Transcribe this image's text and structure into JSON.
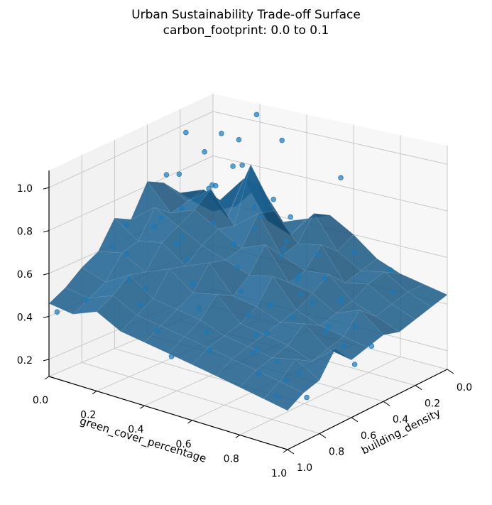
{
  "figure": {
    "title_line1": "Urban Sustainability Trade-off Surface",
    "title_line2": "carbon_footprint: 0.0 to 0.1"
  },
  "colors": {
    "surface": "#1f77b4",
    "surface_edge": "#16405f",
    "scatter": "#1f77b4",
    "pane_left": "#f2f2f2",
    "pane_right": "#f7f7f7",
    "pane_floor": "#f4f4f4",
    "grid": "#c8c8c8",
    "axis": "#000000"
  },
  "chart_data": {
    "type": "surface+scatter (3d)",
    "title": "Urban Sustainability Trade-off Surface\ncarbon_footprint: 0.0 to 0.1",
    "xlabel": "green_cover_percentage",
    "ylabel": "building_density",
    "zlabel": "",
    "xlim": [
      0.0,
      1.0
    ],
    "ylim": [
      0.0,
      1.0
    ],
    "zlim": [
      0.12,
      1.08
    ],
    "x_ticks": [
      "0.0",
      "0.2",
      "0.4",
      "0.6",
      "0.8",
      "1.0"
    ],
    "y_ticks": [
      "0.0",
      "0.2",
      "0.4",
      "0.6",
      "0.8",
      "1.0"
    ],
    "z_ticks": [
      "0.2",
      "0.4",
      "0.6",
      "0.8",
      "1.0"
    ],
    "grid": true,
    "surface_grid": {
      "x": [
        0.0,
        0.1,
        0.2,
        0.3,
        0.4,
        0.5,
        0.6,
        0.7,
        0.8,
        0.9,
        1.0
      ],
      "y": [
        0.0,
        0.1,
        0.2,
        0.3,
        0.4,
        0.5,
        0.6,
        0.7,
        0.8,
        0.9,
        1.0
      ],
      "z": [
        [
          0.55,
          0.6,
          0.72,
          0.58,
          0.62,
          0.66,
          0.6,
          0.52,
          0.48,
          0.46,
          0.44
        ],
        [
          0.62,
          0.66,
          0.78,
          0.62,
          0.58,
          0.7,
          0.56,
          0.5,
          0.52,
          0.46,
          0.42
        ],
        [
          0.7,
          0.74,
          0.64,
          0.9,
          0.72,
          0.6,
          0.62,
          0.48,
          0.5,
          0.44,
          0.4
        ],
        [
          0.78,
          0.72,
          0.8,
          0.66,
          0.74,
          0.58,
          0.54,
          0.55,
          0.46,
          0.42,
          0.38
        ],
        [
          0.82,
          0.7,
          0.74,
          0.68,
          0.62,
          0.66,
          0.52,
          0.5,
          0.44,
          0.48,
          0.4
        ],
        [
          0.68,
          0.76,
          0.7,
          0.64,
          0.6,
          0.56,
          0.58,
          0.46,
          0.42,
          0.4,
          0.38
        ],
        [
          0.72,
          0.64,
          0.66,
          0.58,
          0.62,
          0.5,
          0.48,
          0.44,
          0.46,
          0.38,
          0.36
        ],
        [
          0.6,
          0.62,
          0.56,
          0.6,
          0.52,
          0.54,
          0.44,
          0.42,
          0.4,
          0.36,
          0.44
        ],
        [
          0.56,
          0.52,
          0.58,
          0.5,
          0.48,
          0.46,
          0.42,
          0.4,
          0.38,
          0.4,
          0.34
        ],
        [
          0.5,
          0.48,
          0.52,
          0.46,
          0.44,
          0.42,
          0.4,
          0.38,
          0.36,
          0.34,
          0.32
        ],
        [
          0.46,
          0.44,
          0.48,
          0.42,
          0.4,
          0.38,
          0.36,
          0.34,
          0.32,
          0.3,
          0.28
        ]
      ]
    },
    "scatter_points": [
      [
        0.05,
        0.02,
        0.92
      ],
      [
        0.12,
        0.05,
        0.8
      ],
      [
        0.02,
        0.08,
        0.85
      ],
      [
        0.18,
        0.1,
        0.95
      ],
      [
        0.08,
        0.14,
        0.72
      ],
      [
        0.25,
        0.18,
        0.88
      ],
      [
        0.3,
        0.06,
        0.7
      ],
      [
        0.15,
        0.22,
        0.78
      ],
      [
        0.4,
        0.1,
        0.66
      ],
      [
        0.22,
        0.3,
        0.82
      ],
      [
        0.35,
        0.25,
        0.74
      ],
      [
        0.1,
        0.35,
        0.86
      ],
      [
        0.45,
        0.2,
        0.6
      ],
      [
        0.28,
        0.4,
        0.7
      ],
      [
        0.5,
        0.3,
        0.58
      ],
      [
        0.18,
        0.45,
        0.76
      ],
      [
        0.55,
        0.15,
        0.55
      ],
      [
        0.38,
        0.42,
        0.64
      ],
      [
        0.6,
        0.35,
        0.52
      ],
      [
        0.25,
        0.55,
        0.68
      ],
      [
        0.65,
        0.25,
        0.5
      ],
      [
        0.45,
        0.5,
        0.58
      ],
      [
        0.7,
        0.4,
        0.46
      ],
      [
        0.32,
        0.62,
        0.62
      ],
      [
        0.75,
        0.3,
        0.44
      ],
      [
        0.52,
        0.58,
        0.52
      ],
      [
        0.8,
        0.45,
        0.4
      ],
      [
        0.4,
        0.7,
        0.56
      ],
      [
        0.85,
        0.35,
        0.38
      ],
      [
        0.6,
        0.65,
        0.46
      ],
      [
        0.9,
        0.5,
        0.36
      ],
      [
        0.48,
        0.78,
        0.5
      ],
      [
        0.95,
        0.4,
        0.34
      ],
      [
        0.68,
        0.72,
        0.42
      ],
      [
        0.98,
        0.55,
        0.32
      ],
      [
        0.56,
        0.85,
        0.44
      ],
      [
        0.72,
        0.8,
        0.38
      ],
      [
        0.62,
        0.92,
        0.4
      ],
      [
        0.8,
        0.88,
        0.34
      ],
      [
        0.88,
        0.75,
        0.32
      ],
      [
        0.92,
        0.95,
        0.3
      ],
      [
        0.98,
        0.85,
        0.28
      ],
      [
        0.02,
        0.98,
        0.42
      ],
      [
        0.1,
        0.92,
        0.48
      ],
      [
        0.05,
        0.6,
        0.7
      ],
      [
        0.12,
        0.7,
        0.62
      ],
      [
        0.2,
        0.8,
        0.56
      ],
      [
        0.3,
        0.88,
        0.5
      ],
      [
        0.42,
        0.95,
        0.44
      ],
      [
        0.15,
        0.5,
        0.92
      ],
      [
        0.08,
        0.28,
        1.02
      ],
      [
        0.2,
        0.02,
        1.04
      ],
      [
        0.35,
        0.08,
        0.98
      ],
      [
        0.03,
        0.4,
        0.62
      ],
      [
        0.26,
        0.12,
        0.58
      ],
      [
        0.58,
        0.05,
        0.86
      ],
      [
        0.48,
        0.4,
        0.78
      ],
      [
        0.66,
        0.52,
        0.72
      ],
      [
        0.78,
        0.6,
        0.66
      ],
      [
        0.84,
        0.68,
        0.62
      ],
      [
        0.9,
        0.82,
        0.58
      ],
      [
        0.96,
        0.7,
        0.5
      ],
      [
        0.74,
        0.2,
        0.62
      ],
      [
        0.86,
        0.15,
        0.56
      ],
      [
        0.94,
        0.25,
        0.52
      ],
      [
        0.36,
        0.74,
        0.74
      ],
      [
        0.24,
        0.66,
        0.8
      ],
      [
        0.14,
        0.82,
        0.7
      ],
      [
        0.54,
        0.45,
        0.3
      ],
      [
        0.7,
        0.62,
        0.28
      ],
      [
        0.44,
        0.28,
        0.34
      ],
      [
        0.62,
        0.1,
        0.36
      ],
      [
        0.82,
        0.92,
        0.46
      ],
      [
        0.99,
        0.99,
        0.4
      ],
      [
        0.5,
        0.98,
        0.36
      ],
      [
        0.06,
        0.5,
        0.38
      ]
    ]
  }
}
